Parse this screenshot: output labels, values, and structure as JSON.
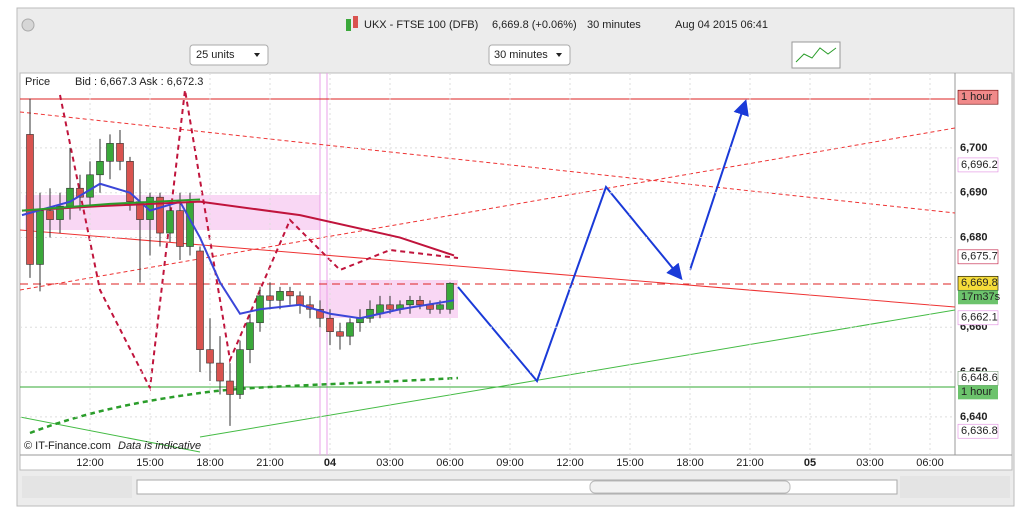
{
  "window": {
    "symbol": "UKX - FTSE 100 (DFB)",
    "quote": "6,669.8 (+0.06%)",
    "interval": "30 minutes",
    "datetime": "Aug 04 2015 06:41"
  },
  "toolbar": {
    "units": "25 units",
    "period": "30 minutes"
  },
  "chart_data": {
    "type": "candlestick",
    "price_label": "Price",
    "quote_label": "Bid : 6,667.3 Ask : 6,672.3",
    "copyright": "© IT-Finance.com",
    "note": "Data is indicative",
    "up_color": "#3aa83a",
    "down_color": "#d9534f",
    "grid": true,
    "xlim": [
      -3.5,
      43.25
    ],
    "ylim": [
      6631.5,
      6716.7
    ],
    "xticks": [
      {
        "value": 0,
        "label": "12:00"
      },
      {
        "value": 3,
        "label": "15:00"
      },
      {
        "value": 6,
        "label": "18:00"
      },
      {
        "value": 9,
        "label": "21:00"
      },
      {
        "value": 12,
        "label": "04"
      },
      {
        "value": 15,
        "label": "03:00"
      },
      {
        "value": 18,
        "label": "06:00"
      },
      {
        "value": 21,
        "label": "09:00"
      },
      {
        "value": 24,
        "label": "12:00"
      },
      {
        "value": 27,
        "label": "15:00"
      },
      {
        "value": 30,
        "label": "18:00"
      },
      {
        "value": 33,
        "label": "21:00"
      },
      {
        "value": 36,
        "label": "05"
      },
      {
        "value": 39,
        "label": "03:00"
      },
      {
        "value": 42,
        "label": "06:00"
      }
    ],
    "yticks": [
      {
        "value": 6640,
        "label": "6,640"
      },
      {
        "value": 6650,
        "label": "6,650"
      },
      {
        "value": 6660,
        "label": "6,660"
      },
      {
        "value": 6680,
        "label": "6,680"
      },
      {
        "value": 6690,
        "label": "6,690"
      },
      {
        "value": 6700,
        "label": "6,700"
      }
    ],
    "x": [
      -3,
      -2.5,
      -2,
      -1.5,
      -1,
      -0.5,
      0,
      0.5,
      1,
      1.5,
      2,
      2.5,
      3,
      3.5,
      4,
      4.5,
      5,
      5.5,
      6,
      6.5,
      7,
      7.5,
      8,
      8.5,
      9,
      9.5,
      10,
      10.5,
      11,
      11.5,
      12,
      12.5,
      13,
      13.5,
      14,
      14.5,
      15,
      15.5,
      16,
      16.5,
      17,
      17.5,
      18
    ],
    "open": [
      6703,
      6674,
      6686,
      6684,
      6687,
      6691,
      6689,
      6694,
      6697,
      6701,
      6697,
      6688,
      6684,
      6689,
      6681,
      6686,
      6678,
      6677,
      6655,
      6652,
      6648,
      6645,
      6655,
      6661,
      6667,
      6666,
      6668,
      6667,
      6665,
      6664,
      6662,
      6659,
      6658,
      6661,
      6662,
      6663,
      6665,
      6664,
      6665,
      6666,
      6665,
      6664,
      6664
    ],
    "high": [
      6711,
      6690,
      6691,
      6690,
      6700,
      6694,
      6697,
      6702,
      6703,
      6704,
      6698,
      6693,
      6690,
      6690,
      6688,
      6690,
      6690,
      6678,
      6662,
      6658,
      6652,
      6657,
      6663,
      6669,
      6670,
      6669,
      6669,
      6668,
      6667,
      6666,
      6664,
      6661,
      6662,
      6664,
      6666,
      6667,
      6667,
      6666,
      6667,
      6667,
      6666,
      6666,
      6670
    ],
    "low": [
      6671,
      6668,
      6680,
      6681,
      6684,
      6686,
      6687,
      6690,
      6693,
      6695,
      6686,
      6670,
      6676,
      6678,
      6679,
      6675,
      6676,
      6650,
      6648,
      6645,
      6638,
      6644,
      6652,
      6659,
      6664,
      6664,
      6665,
      6663,
      6662,
      6660,
      6656,
      6655,
      6656,
      6659,
      6661,
      6662,
      6663,
      6663,
      6663,
      6664,
      6663,
      6663,
      6663
    ],
    "close": [
      6674,
      6686,
      6684,
      6687,
      6691,
      6689,
      6694,
      6697,
      6701,
      6697,
      6688,
      6684,
      6689,
      6681,
      6686,
      6678,
      6688,
      6655,
      6652,
      6648,
      6645,
      6655,
      6661,
      6667,
      6666,
      6668,
      6667,
      6665,
      6664,
      6662,
      6659,
      6658,
      6661,
      6662,
      6664,
      6665,
      6664,
      6665,
      6666,
      6665,
      6664,
      6665,
      6669.8
    ],
    "lines": [
      {
        "color": "#3b46d8",
        "x": [
          -3.4,
          -1,
          0.5,
          2,
          3,
          4.5,
          5.5,
          6.5,
          7.5,
          8.5,
          10.5,
          12,
          13.5,
          15.5,
          18.2
        ],
        "values": [
          6685,
          6688,
          6692,
          6690,
          6686,
          6688,
          6680,
          6670,
          6663,
          6664,
          6665,
          6663,
          6662,
          6664,
          6666
        ]
      },
      {
        "color": "#c0143c",
        "x": [
          -3.4,
          0.5,
          5.5,
          10.5,
          15.5,
          18.2
        ],
        "values": [
          6686,
          6687,
          6688,
          6685,
          6680,
          6676
        ]
      },
      {
        "color": "#2a9d2a",
        "x": [
          -3.4,
          1,
          5.5
        ],
        "values": [
          6686,
          6687.5,
          6688.5
        ]
      }
    ],
    "price_badges": [
      {
        "value": 6711.3,
        "label": "1 hour",
        "bg": "#f08a8a",
        "fg": "#6a0000"
      },
      {
        "value": 6696.2,
        "label": "6,696.2",
        "bg": "#ffffff",
        "fg": "#e08ae0"
      },
      {
        "value": 6675.7,
        "label": "6,675.7",
        "bg": "#ffffff",
        "fg": "#c0143c"
      },
      {
        "value": 6669.8,
        "label": "6,669.8",
        "bg": "#f5dc3a",
        "fg": "#000000",
        "sub": "17m37s"
      },
      {
        "value": 6662.1,
        "label": "6,662.1",
        "bg": "#ffffff",
        "fg": "#e08ae0"
      },
      {
        "value": 6648.6,
        "label": "6,648.6",
        "bg": "#ffffff",
        "fg": "#7a9a7a",
        "sub": "1 hour"
      },
      {
        "value": 6636.8,
        "label": "6,636.8",
        "bg": "#ffffff",
        "fg": "#e08ae0"
      }
    ]
  }
}
